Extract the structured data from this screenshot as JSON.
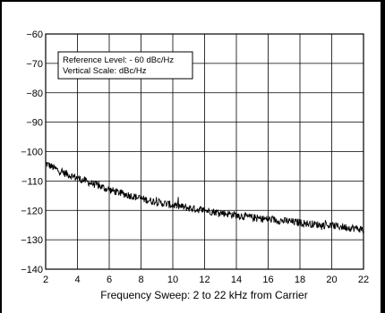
{
  "chart_data": {
    "type": "line",
    "title": "",
    "xlabel": "Frequency Sweep: 2 to 22 kHz from Carrier",
    "ylabel": "",
    "xlim": [
      2,
      22
    ],
    "ylim": [
      -140,
      -60
    ],
    "grid": true,
    "x_ticks": [
      2,
      4,
      6,
      8,
      10,
      12,
      14,
      16,
      18,
      20,
      22
    ],
    "y_ticks": [
      -60,
      -70,
      -80,
      -90,
      -100,
      -110,
      -120,
      -130,
      -140
    ],
    "x_tick_labels": [
      "2",
      "4",
      "6",
      "8",
      "10",
      "12",
      "14",
      "16",
      "18",
      "20",
      "22"
    ],
    "y_tick_labels": [
      "−60",
      "−70",
      "−80",
      "−90",
      "−100",
      "−110",
      "−120",
      "−130",
      "−140"
    ],
    "annotation": {
      "lines": [
        "Reference Level: - 60 dBc/Hz",
        "Vertical Scale: dBc/Hz"
      ],
      "placement": "top-left"
    },
    "series": [
      {
        "color": "#000000",
        "x": [
          2.0,
          2.5,
          3.0,
          3.5,
          4.0,
          4.5,
          5.0,
          5.5,
          6.0,
          6.5,
          7.0,
          7.5,
          8.0,
          8.5,
          9.0,
          9.5,
          10.0,
          10.5,
          11.0,
          11.5,
          12.0,
          12.5,
          13.0,
          13.5,
          14.0,
          14.5,
          15.0,
          15.5,
          16.0,
          16.5,
          17.0,
          17.5,
          18.0,
          18.5,
          19.0,
          19.5,
          20.0,
          20.5,
          21.0,
          21.5,
          22.0
        ],
        "values": [
          -104,
          -105.5,
          -107,
          -108,
          -109,
          -110,
          -111,
          -112,
          -113,
          -113.8,
          -114.5,
          -115.2,
          -116,
          -116.6,
          -117.2,
          -117.7,
          -118.2,
          -118.7,
          -119.2,
          -119.6,
          -120,
          -120.4,
          -120.8,
          -121.2,
          -121.6,
          -122,
          -122.4,
          -122.8,
          -123,
          -123.3,
          -123.6,
          -123.9,
          -124.2,
          -124.5,
          -124.8,
          -125,
          -125.2,
          -125.5,
          -125.8,
          -126.1,
          -126.5
        ]
      }
    ]
  }
}
